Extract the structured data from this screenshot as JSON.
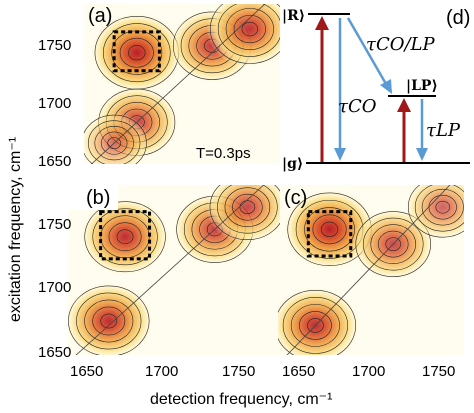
{
  "figure": {
    "panels": [
      {
        "id": "a",
        "label": "(a)",
        "annotation": "T=0.3ps"
      },
      {
        "id": "b",
        "label": "(b)"
      },
      {
        "id": "c",
        "label": "(c)"
      },
      {
        "id": "d",
        "label": "(d)"
      }
    ],
    "axes": {
      "xlabel": "detection frequency, cm⁻¹",
      "ylabel": "excitation frequency, cm⁻¹",
      "yticks_a": [
        "1750",
        "1700",
        "1650"
      ],
      "yticks_b": [
        "1750",
        "1700",
        "1650"
      ],
      "xticks_b": [
        "1650",
        "1700",
        "1750"
      ],
      "xticks_c": [
        "1650",
        "1700",
        "1750"
      ]
    },
    "diagram": {
      "state_R": "|R⟩",
      "state_LP": "|LP⟩",
      "state_g": "|g⟩",
      "tau_co_lp": "τCO/LP",
      "tau_co": "τCO",
      "tau_lp": "τLP"
    },
    "colors": {
      "peak_red": "#c0392b",
      "contour_yellow": "#fff3b0",
      "arrow_red": "#a01818",
      "arrow_blue": "#5b9bd5"
    }
  },
  "chart_data": [
    {
      "type": "heatmap",
      "panel": "a",
      "xlim": [
        1640,
        1770
      ],
      "ylim": [
        1645,
        1760
      ],
      "yticks": [
        1650,
        1700,
        1750
      ],
      "peaks": [
        {
          "x": 1675,
          "y": 1725,
          "amp": 1.0
        },
        {
          "x": 1725,
          "y": 1730,
          "amp": 0.8
        },
        {
          "x": 1750,
          "y": 1742,
          "amp": 0.85
        },
        {
          "x": 1675,
          "y": 1675,
          "amp": 0.75
        },
        {
          "x": 1660,
          "y": 1660,
          "amp": 0.35
        }
      ],
      "dotted_box": {
        "x": [
          1660,
          1690
        ],
        "y": [
          1712,
          1740
        ]
      }
    },
    {
      "type": "heatmap",
      "panel": "b",
      "xlim": [
        1640,
        1770
      ],
      "ylim": [
        1645,
        1760
      ],
      "xticks": [
        1650,
        1700,
        1750
      ],
      "yticks": [
        1650,
        1700,
        1750
      ],
      "peaks": [
        {
          "x": 1675,
          "y": 1725,
          "amp": 0.9
        },
        {
          "x": 1730,
          "y": 1730,
          "amp": 0.75
        },
        {
          "x": 1750,
          "y": 1745,
          "amp": 0.7
        },
        {
          "x": 1665,
          "y": 1668,
          "amp": 0.9
        }
      ],
      "dotted_box": {
        "x": [
          1660,
          1690
        ],
        "y": [
          1710,
          1742
        ]
      }
    },
    {
      "type": "heatmap",
      "panel": "c",
      "xlim": [
        1640,
        1770
      ],
      "ylim": [
        1645,
        1760
      ],
      "xticks": [
        1650,
        1700,
        1750
      ],
      "peaks": [
        {
          "x": 1675,
          "y": 1730,
          "amp": 1.0
        },
        {
          "x": 1720,
          "y": 1720,
          "amp": 0.7
        },
        {
          "x": 1665,
          "y": 1665,
          "amp": 0.9
        },
        {
          "x": 1755,
          "y": 1745,
          "amp": 0.5
        }
      ],
      "dotted_box": {
        "x": [
          1660,
          1690
        ],
        "y": [
          1712,
          1742
        ]
      }
    }
  ]
}
